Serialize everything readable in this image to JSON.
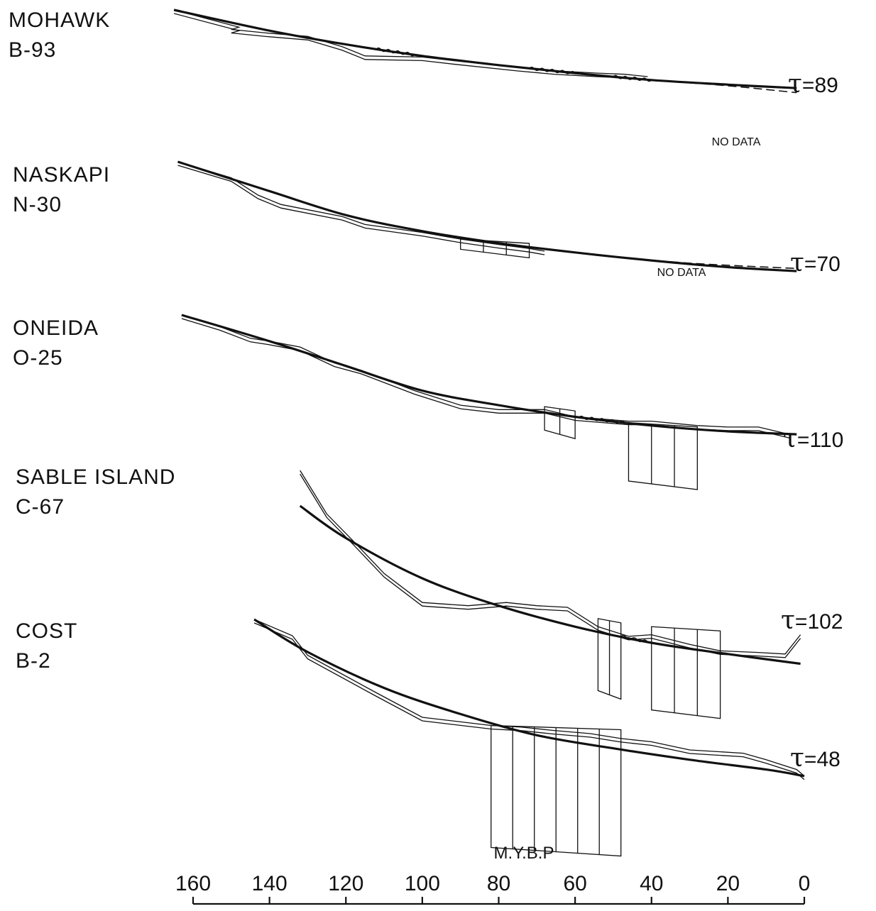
{
  "chart_data": {
    "type": "line",
    "xlabel": "M.Y.B.P",
    "xlim": [
      160,
      0
    ],
    "x_ticks": [
      "160",
      "140",
      "120",
      "100",
      "80",
      "60",
      "40",
      "20",
      "0"
    ],
    "no_data_label": "NO DATA",
    "series": [
      {
        "well": "MOHAWK",
        "well_id": "B-93",
        "tau_symbol": "τ",
        "tau": "=89",
        "no_data": true,
        "curve": [
          [
            165,
            0.0
          ],
          [
            140,
            0.18
          ],
          [
            120,
            0.3
          ],
          [
            100,
            0.4
          ],
          [
            80,
            0.48
          ],
          [
            60,
            0.55
          ],
          [
            40,
            0.61
          ],
          [
            20,
            0.65
          ],
          [
            2,
            0.68
          ]
        ],
        "dashed_tail": [
          [
            40,
            0.61
          ],
          [
            20,
            0.66
          ],
          [
            2,
            0.72
          ]
        ],
        "observed": [
          [
            165,
            0.0
          ],
          [
            148,
            0.15
          ],
          [
            150,
            0.17
          ],
          [
            141,
            0.2
          ],
          [
            130,
            0.23
          ],
          [
            121,
            0.32
          ],
          [
            115,
            0.4
          ],
          [
            100,
            0.41
          ],
          [
            92,
            0.44
          ],
          [
            75,
            0.5
          ],
          [
            65,
            0.53
          ],
          [
            54,
            0.55
          ],
          [
            47,
            0.56
          ],
          [
            41,
            0.58
          ]
        ],
        "unconformities": [
          [
            112,
            102
          ],
          [
            72,
            60
          ],
          [
            50,
            40
          ]
        ]
      },
      {
        "well": "NASKAPI",
        "well_id": "N-30",
        "tau_symbol": "τ",
        "tau": "=70",
        "no_data": true,
        "curve": [
          [
            164,
            0.0
          ],
          [
            140,
            0.22
          ],
          [
            120,
            0.4
          ],
          [
            100,
            0.52
          ],
          [
            80,
            0.61
          ],
          [
            60,
            0.68
          ],
          [
            40,
            0.74
          ],
          [
            20,
            0.79
          ],
          [
            2,
            0.82
          ]
        ],
        "dashed_tail": [
          [
            55,
            0.7
          ],
          [
            30,
            0.76
          ],
          [
            2,
            0.8
          ]
        ],
        "observed": [
          [
            164,
            0.0
          ],
          [
            150,
            0.12
          ],
          [
            143,
            0.25
          ],
          [
            137,
            0.32
          ],
          [
            121,
            0.41
          ],
          [
            115,
            0.47
          ],
          [
            100,
            0.53
          ],
          [
            90,
            0.58
          ],
          [
            80,
            0.62
          ],
          [
            72,
            0.65
          ],
          [
            68,
            0.67
          ]
        ],
        "boxes": [
          [
            90,
            72,
            0.58,
            0.72
          ]
        ]
      },
      {
        "well": "ONEIDA",
        "well_id": "O-25",
        "tau_symbol": "τ",
        "tau": "=110",
        "no_data": false,
        "curve": [
          [
            163,
            0.0
          ],
          [
            140,
            0.18
          ],
          [
            120,
            0.35
          ],
          [
            100,
            0.52
          ],
          [
            80,
            0.62
          ],
          [
            60,
            0.7
          ],
          [
            40,
            0.76
          ],
          [
            20,
            0.8
          ],
          [
            2,
            0.82
          ]
        ],
        "observed": [
          [
            163,
            0.0
          ],
          [
            153,
            0.08
          ],
          [
            145,
            0.16
          ],
          [
            140,
            0.18
          ],
          [
            132,
            0.22
          ],
          [
            123,
            0.33
          ],
          [
            116,
            0.38
          ],
          [
            102,
            0.52
          ],
          [
            90,
            0.62
          ],
          [
            80,
            0.65
          ],
          [
            68,
            0.65
          ],
          [
            60,
            0.7
          ],
          [
            46,
            0.73
          ],
          [
            40,
            0.73
          ],
          [
            28,
            0.76
          ],
          [
            20,
            0.77
          ],
          [
            12,
            0.77
          ],
          [
            4,
            0.82
          ]
        ],
        "boxes": [
          [
            68,
            60,
            0.63,
            0.85
          ],
          [
            46,
            28,
            0.74,
            1.2
          ]
        ],
        "unconformities": [
          [
            59,
            47
          ]
        ]
      },
      {
        "well": "SABLE ISLAND",
        "well_id": "C-67",
        "tau_symbol": "τ",
        "tau": "=102",
        "no_data": false,
        "curve": [
          [
            132,
            0.0
          ],
          [
            120,
            0.2
          ],
          [
            100,
            0.45
          ],
          [
            80,
            0.62
          ],
          [
            60,
            0.75
          ],
          [
            40,
            0.85
          ],
          [
            20,
            0.92
          ],
          [
            1,
            0.98
          ]
        ],
        "observed": [
          [
            132,
            -0.22
          ],
          [
            125,
            0.05
          ],
          [
            118,
            0.22
          ],
          [
            110,
            0.42
          ],
          [
            100,
            0.6
          ],
          [
            88,
            0.62
          ],
          [
            78,
            0.6
          ],
          [
            70,
            0.62
          ],
          [
            62,
            0.63
          ],
          [
            54,
            0.75
          ],
          [
            46,
            0.81
          ],
          [
            40,
            0.8
          ],
          [
            30,
            0.86
          ],
          [
            22,
            0.9
          ],
          [
            12,
            0.91
          ],
          [
            5,
            0.92
          ],
          [
            1,
            0.8
          ]
        ],
        "boxes": [
          [
            54,
            48,
            0.7,
            1.2
          ],
          [
            40,
            22,
            0.75,
            1.32
          ]
        ],
        "unconformities": [
          [
            48,
            41
          ]
        ]
      },
      {
        "well": "COST",
        "well_id": "B-2",
        "tau_symbol": "τ",
        "tau": "=48",
        "no_data": false,
        "curve": [
          [
            144,
            0.0
          ],
          [
            130,
            0.2
          ],
          [
            110,
            0.42
          ],
          [
            90,
            0.58
          ],
          [
            70,
            0.71
          ],
          [
            50,
            0.79
          ],
          [
            30,
            0.86
          ],
          [
            10,
            0.92
          ],
          [
            0,
            0.96
          ]
        ],
        "observed": [
          [
            144,
            0.0
          ],
          [
            134,
            0.1
          ],
          [
            130,
            0.22
          ],
          [
            112,
            0.45
          ],
          [
            100,
            0.6
          ],
          [
            82,
            0.65
          ],
          [
            74,
            0.66
          ],
          [
            66,
            0.68
          ],
          [
            56,
            0.7
          ],
          [
            48,
            0.73
          ],
          [
            40,
            0.75
          ],
          [
            30,
            0.8
          ],
          [
            16,
            0.82
          ],
          [
            10,
            0.86
          ],
          [
            2,
            0.92
          ],
          [
            0,
            0.96
          ]
        ],
        "boxes": [
          [
            82,
            48,
            0.65,
            1.45
          ]
        ]
      }
    ]
  }
}
